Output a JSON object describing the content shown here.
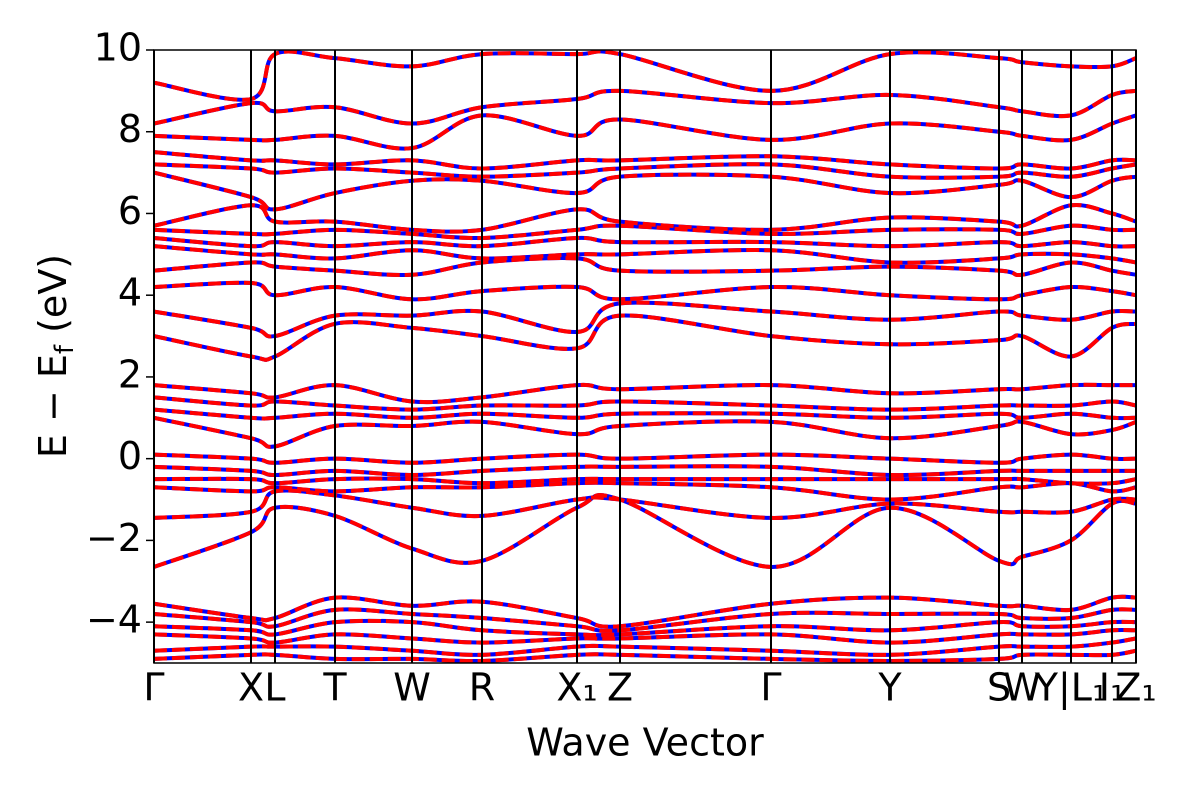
{
  "chart_data": {
    "type": "line",
    "xlabel": "Wave Vector",
    "ylabel": [
      "E − E",
      "f",
      " (eV)"
    ],
    "x": [
      0,
      0.97,
      1.21,
      1.81,
      2.58,
      3.28,
      4.23,
      4.66,
      6.17,
      7.36,
      8.45,
      8.68,
      9.17,
      9.58,
      9.82
    ],
    "xlim": [
      0,
      9.82
    ],
    "xticks": [
      {
        "value": 0,
        "label": "Γ"
      },
      {
        "value": 0.97,
        "label": "X"
      },
      {
        "value": 1.21,
        "label": "L"
      },
      {
        "value": 1.81,
        "label": "T"
      },
      {
        "value": 2.58,
        "label": "W"
      },
      {
        "value": 3.28,
        "label": "R"
      },
      {
        "value": 4.23,
        "label": "X₁"
      },
      {
        "value": 4.66,
        "label": "Z"
      },
      {
        "value": 6.17,
        "label": "Γ"
      },
      {
        "value": 7.36,
        "label": "Y"
      },
      {
        "value": 8.45,
        "label": "S"
      },
      {
        "value": 8.68,
        "label": "W"
      },
      {
        "value": 9.17,
        "label": "Y|L₁"
      },
      {
        "value": 9.58,
        "label": "I₁"
      },
      {
        "value": 9.82,
        "label": "Z₁"
      }
    ],
    "ylim": [
      -5,
      10
    ],
    "yticks": [
      {
        "value": -4,
        "label": "−4"
      },
      {
        "value": -2,
        "label": "−2"
      },
      0,
      2,
      4,
      6,
      8,
      10
    ],
    "line_color": "#0000ff",
    "dash_color": "#ff0000",
    "series": [
      {
        "values": [
          9.2,
          8.8,
          9.9,
          9.8,
          9.6,
          9.9,
          9.9,
          9.9,
          9.0,
          9.9,
          9.8,
          9.7,
          9.6,
          9.6,
          9.8
        ]
      },
      {
        "values": [
          8.2,
          8.7,
          8.5,
          8.6,
          8.2,
          8.6,
          8.8,
          9.0,
          8.7,
          8.9,
          8.6,
          8.5,
          8.4,
          8.9,
          9.0
        ]
      },
      {
        "values": [
          7.9,
          7.8,
          7.8,
          7.9,
          7.6,
          8.4,
          7.9,
          8.3,
          7.8,
          8.2,
          8.0,
          7.9,
          7.8,
          8.2,
          8.4
        ]
      },
      {
        "values": [
          7.5,
          7.3,
          7.3,
          7.2,
          7.3,
          7.1,
          7.3,
          7.3,
          7.4,
          7.2,
          7.1,
          7.2,
          7.1,
          7.3,
          7.3
        ]
      },
      {
        "values": [
          7.2,
          7.1,
          7.0,
          7.1,
          7.0,
          6.9,
          7.0,
          7.1,
          7.2,
          6.9,
          6.9,
          7.0,
          6.9,
          7.1,
          7.2
        ]
      },
      {
        "values": [
          7.0,
          6.4,
          6.1,
          6.5,
          6.8,
          6.8,
          6.5,
          6.9,
          6.9,
          6.5,
          6.7,
          6.8,
          6.4,
          6.8,
          6.9
        ]
      },
      {
        "values": [
          5.7,
          6.2,
          5.8,
          5.8,
          5.6,
          5.6,
          6.1,
          5.8,
          5.6,
          5.9,
          5.8,
          5.7,
          6.2,
          6.0,
          5.8
        ]
      },
      {
        "values": [
          5.6,
          5.5,
          5.5,
          5.6,
          5.5,
          5.4,
          5.6,
          5.7,
          5.5,
          5.6,
          5.6,
          5.5,
          5.7,
          5.6,
          5.6
        ]
      },
      {
        "values": [
          5.4,
          5.2,
          5.3,
          5.2,
          5.3,
          5.2,
          5.4,
          5.3,
          5.3,
          5.2,
          5.3,
          5.2,
          5.3,
          5.2,
          5.2
        ]
      },
      {
        "values": [
          5.2,
          5.0,
          5.0,
          4.9,
          5.1,
          4.9,
          5.0,
          5.0,
          5.1,
          4.8,
          4.9,
          5.0,
          5.0,
          4.9,
          4.8
        ]
      },
      {
        "values": [
          4.6,
          4.8,
          4.7,
          4.6,
          4.5,
          4.8,
          4.9,
          4.6,
          4.6,
          4.7,
          4.6,
          4.5,
          4.8,
          4.6,
          4.5
        ]
      },
      {
        "values": [
          4.2,
          4.3,
          4.0,
          4.2,
          3.9,
          4.1,
          4.2,
          3.9,
          4.2,
          4.0,
          3.9,
          4.0,
          4.2,
          4.1,
          4.0
        ]
      },
      {
        "values": [
          3.6,
          3.2,
          3.0,
          3.5,
          3.5,
          3.6,
          3.1,
          3.8,
          3.6,
          3.4,
          3.6,
          3.5,
          3.4,
          3.6,
          3.6
        ]
      },
      {
        "values": [
          3.0,
          2.5,
          2.5,
          3.3,
          3.2,
          3.0,
          2.7,
          3.5,
          3.0,
          2.8,
          2.9,
          3.0,
          2.5,
          3.2,
          3.3
        ]
      },
      {
        "values": [
          1.8,
          1.6,
          1.5,
          1.8,
          1.4,
          1.5,
          1.8,
          1.7,
          1.8,
          1.6,
          1.7,
          1.7,
          1.8,
          1.8,
          1.8
        ]
      },
      {
        "values": [
          1.5,
          1.3,
          1.4,
          1.3,
          1.2,
          1.3,
          1.3,
          1.4,
          1.3,
          1.2,
          1.3,
          1.3,
          1.3,
          1.4,
          1.3
        ]
      },
      {
        "values": [
          1.2,
          1.0,
          1.0,
          1.1,
          1.0,
          1.1,
          1.0,
          1.1,
          1.1,
          1.0,
          1.1,
          1.0,
          1.1,
          1.0,
          1.0
        ]
      },
      {
        "values": [
          1.0,
          0.5,
          0.3,
          0.8,
          0.8,
          0.9,
          0.6,
          0.8,
          0.9,
          0.5,
          0.8,
          0.9,
          0.6,
          0.7,
          0.9
        ]
      },
      {
        "values": [
          0.1,
          0.0,
          -0.1,
          0.0,
          -0.1,
          0.0,
          0.1,
          0.0,
          0.1,
          0.0,
          -0.1,
          0.0,
          0.1,
          0.0,
          0.0
        ]
      },
      {
        "values": [
          -0.2,
          -0.3,
          -0.4,
          -0.3,
          -0.4,
          -0.3,
          -0.2,
          -0.2,
          -0.2,
          -0.4,
          -0.3,
          -0.3,
          -0.3,
          -0.3,
          -0.3
        ]
      },
      {
        "values": [
          -0.5,
          -0.5,
          -0.6,
          -0.5,
          -0.5,
          -0.6,
          -0.5,
          -0.5,
          -0.5,
          -0.5,
          -0.5,
          -0.5,
          -0.6,
          -0.6,
          -0.5
        ]
      },
      {
        "values": [
          -0.7,
          -0.8,
          -0.7,
          -0.8,
          -0.7,
          -0.7,
          -0.6,
          -0.6,
          -0.7,
          -1.0,
          -0.7,
          -0.7,
          -0.6,
          -0.8,
          -0.7
        ]
      },
      {
        "values": [
          -1.45,
          -1.3,
          -0.8,
          -0.9,
          -1.2,
          -1.4,
          -1.0,
          -1.0,
          -1.45,
          -1.1,
          -1.3,
          -1.3,
          -1.3,
          -1.0,
          -1.0
        ]
      },
      {
        "values": [
          -2.65,
          -1.8,
          -1.2,
          -1.4,
          -2.2,
          -2.5,
          -1.2,
          -1.0,
          -2.65,
          -1.2,
          -2.5,
          -2.4,
          -2.0,
          -1.1,
          -1.1
        ]
      },
      {
        "values": [
          -3.55,
          -3.9,
          -3.9,
          -3.4,
          -3.6,
          -3.5,
          -3.9,
          -4.1,
          -3.55,
          -3.4,
          -3.6,
          -3.6,
          -3.7,
          -3.4,
          -3.4
        ]
      },
      {
        "values": [
          -3.8,
          -4.0,
          -4.1,
          -3.7,
          -3.8,
          -3.9,
          -4.1,
          -4.2,
          -3.8,
          -3.8,
          -3.8,
          -3.9,
          -3.9,
          -3.7,
          -3.7
        ]
      },
      {
        "values": [
          -4.1,
          -4.2,
          -4.3,
          -4.0,
          -4.0,
          -4.2,
          -4.3,
          -4.3,
          -4.1,
          -4.2,
          -4.0,
          -4.1,
          -4.1,
          -4.0,
          -4.0
        ]
      },
      {
        "values": [
          -4.3,
          -4.4,
          -4.5,
          -4.3,
          -4.4,
          -4.5,
          -4.4,
          -4.4,
          -4.3,
          -4.5,
          -4.3,
          -4.3,
          -4.3,
          -4.2,
          -4.2
        ]
      },
      {
        "values": [
          -4.7,
          -4.6,
          -4.6,
          -4.6,
          -4.7,
          -4.8,
          -4.6,
          -4.6,
          -4.7,
          -4.8,
          -4.6,
          -4.6,
          -4.6,
          -4.5,
          -4.4
        ]
      },
      {
        "values": [
          -4.9,
          -4.8,
          -4.8,
          -4.9,
          -4.9,
          -4.95,
          -4.8,
          -4.8,
          -4.9,
          -4.95,
          -4.9,
          -4.8,
          -4.8,
          -4.8,
          -4.7
        ]
      }
    ]
  }
}
